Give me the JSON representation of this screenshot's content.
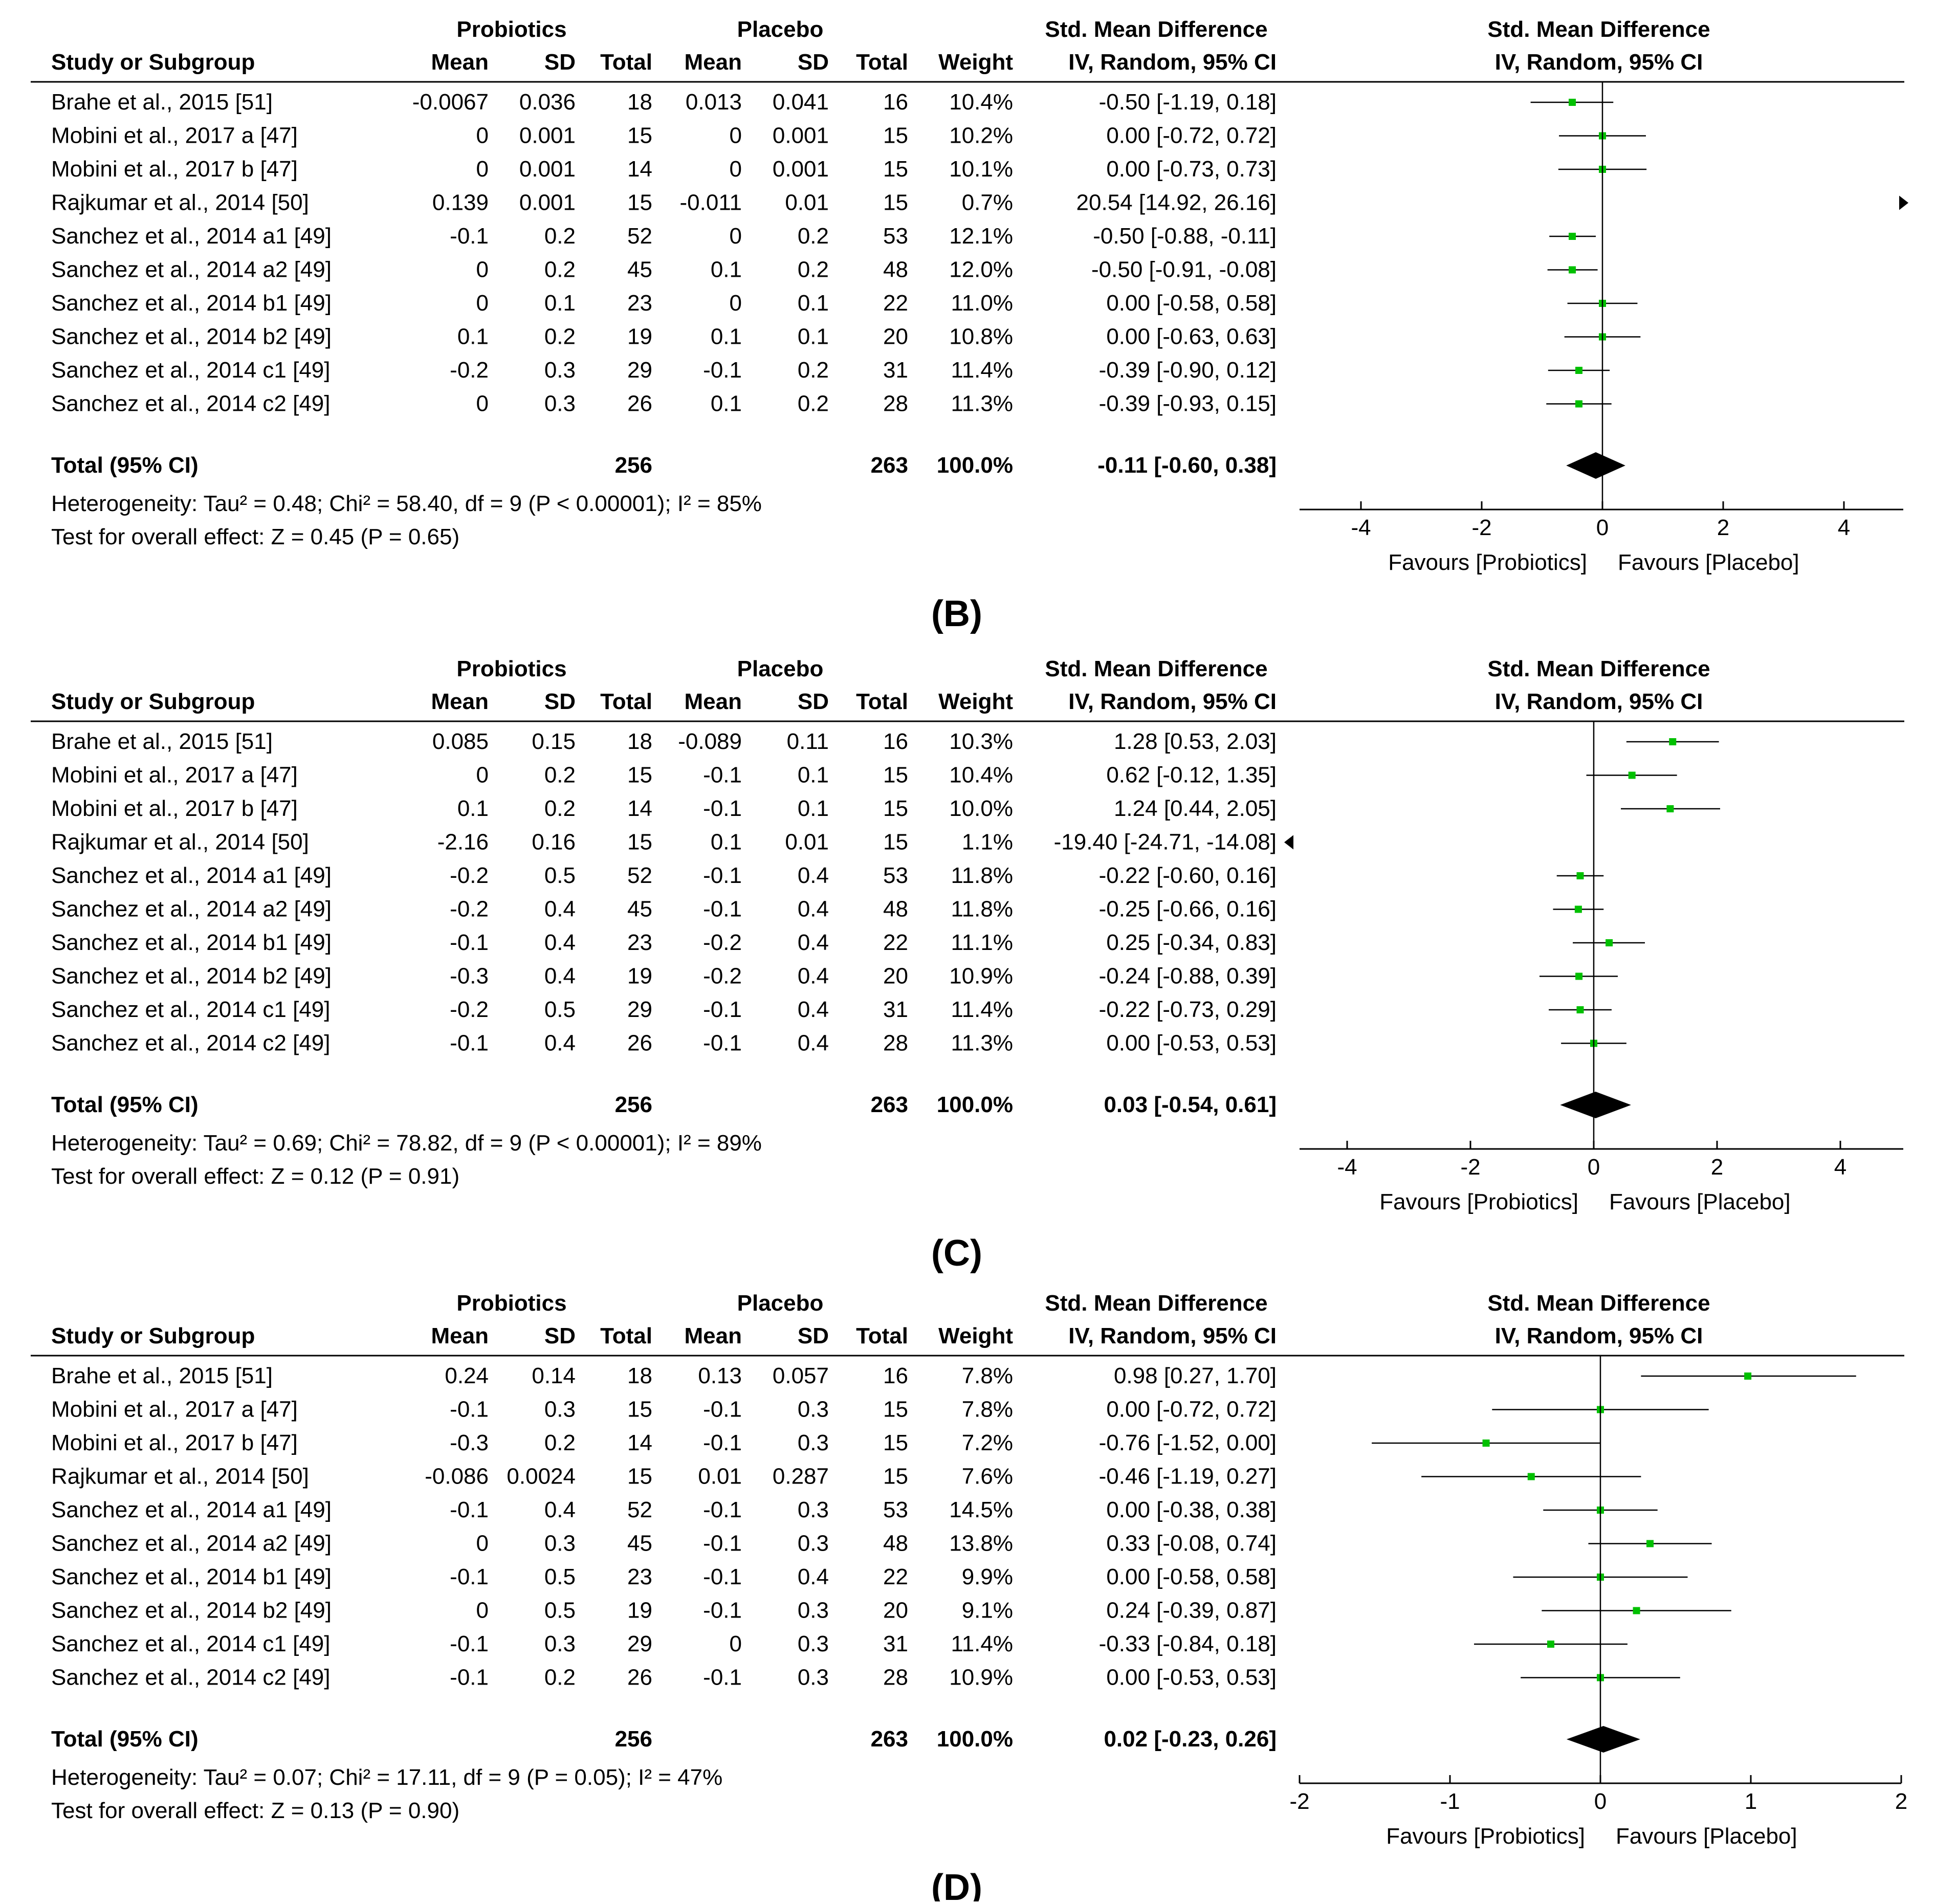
{
  "colors": {
    "point": "#00c000",
    "line": "#000000",
    "background": "#ffffff"
  },
  "header": {
    "group1": "Probiotics",
    "group2": "Placebo",
    "effect_title": "Std. Mean Difference",
    "effect_method": "IV, Random, 95% CI",
    "study_col": "Study or Subgroup",
    "mean": "Mean",
    "sd": "SD",
    "total": "Total",
    "weight": "Weight"
  },
  "chart_data": [
    {
      "type": "forest",
      "panel_label": "(B)",
      "title": "Std. Mean Difference",
      "xlim": [
        -5,
        5
      ],
      "ticks": [
        "-4",
        "-2",
        "0",
        "2",
        "4"
      ],
      "tick_values": [
        -4,
        -2,
        0,
        2,
        4
      ],
      "xlabel_left": "Favours [Probiotics]",
      "xlabel_right": "Favours [Placebo]",
      "studies": [
        {
          "name": "Brahe et al., 2015 [51]",
          "m1": "-0.0067",
          "sd1": "0.036",
          "n1": "18",
          "m2": "0.013",
          "sd2": "0.041",
          "n2": "16",
          "weight": "10.4%",
          "ci_text": "-0.50 [-1.19, 0.18]",
          "est": -0.5,
          "lo": -1.19,
          "hi": 0.18
        },
        {
          "name": "Mobini et al., 2017 a [47]",
          "m1": "0",
          "sd1": "0.001",
          "n1": "15",
          "m2": "0",
          "sd2": "0.001",
          "n2": "15",
          "weight": "10.2%",
          "ci_text": "0.00 [-0.72, 0.72]",
          "est": 0.0,
          "lo": -0.72,
          "hi": 0.72
        },
        {
          "name": "Mobini et al., 2017 b [47]",
          "m1": "0",
          "sd1": "0.001",
          "n1": "14",
          "m2": "0",
          "sd2": "0.001",
          "n2": "15",
          "weight": "10.1%",
          "ci_text": "0.00 [-0.73, 0.73]",
          "est": 0.0,
          "lo": -0.73,
          "hi": 0.73
        },
        {
          "name": "Rajkumar et al., 2014 [50]",
          "m1": "0.139",
          "sd1": "0.001",
          "n1": "15",
          "m2": "-0.011",
          "sd2": "0.01",
          "n2": "15",
          "weight": "0.7%",
          "ci_text": "20.54 [14.92, 26.16]",
          "est": 20.54,
          "lo": 14.92,
          "hi": 26.16
        },
        {
          "name": "Sanchez et al., 2014 a1 [49]",
          "m1": "-0.1",
          "sd1": "0.2",
          "n1": "52",
          "m2": "0",
          "sd2": "0.2",
          "n2": "53",
          "weight": "12.1%",
          "ci_text": "-0.50 [-0.88, -0.11]",
          "est": -0.5,
          "lo": -0.88,
          "hi": -0.11
        },
        {
          "name": "Sanchez et al., 2014 a2 [49]",
          "m1": "0",
          "sd1": "0.2",
          "n1": "45",
          "m2": "0.1",
          "sd2": "0.2",
          "n2": "48",
          "weight": "12.0%",
          "ci_text": "-0.50 [-0.91, -0.08]",
          "est": -0.5,
          "lo": -0.91,
          "hi": -0.08
        },
        {
          "name": "Sanchez et al., 2014 b1 [49]",
          "m1": "0",
          "sd1": "0.1",
          "n1": "23",
          "m2": "0",
          "sd2": "0.1",
          "n2": "22",
          "weight": "11.0%",
          "ci_text": "0.00 [-0.58, 0.58]",
          "est": 0.0,
          "lo": -0.58,
          "hi": 0.58
        },
        {
          "name": "Sanchez et al., 2014 b2 [49]",
          "m1": "0.1",
          "sd1": "0.2",
          "n1": "19",
          "m2": "0.1",
          "sd2": "0.1",
          "n2": "20",
          "weight": "10.8%",
          "ci_text": "0.00 [-0.63, 0.63]",
          "est": 0.0,
          "lo": -0.63,
          "hi": 0.63
        },
        {
          "name": "Sanchez et al., 2014 c1 [49]",
          "m1": "-0.2",
          "sd1": "0.3",
          "n1": "29",
          "m2": "-0.1",
          "sd2": "0.2",
          "n2": "31",
          "weight": "11.4%",
          "ci_text": "-0.39 [-0.90, 0.12]",
          "est": -0.39,
          "lo": -0.9,
          "hi": 0.12
        },
        {
          "name": "Sanchez et al., 2014 c2 [49]",
          "m1": "0",
          "sd1": "0.3",
          "n1": "26",
          "m2": "0.1",
          "sd2": "0.2",
          "n2": "28",
          "weight": "11.3%",
          "ci_text": "-0.39 [-0.93, 0.15]",
          "est": -0.39,
          "lo": -0.93,
          "hi": 0.15
        }
      ],
      "total": {
        "label": "Total (95% CI)",
        "n1": "256",
        "n2": "263",
        "weight": "100.0%",
        "ci_text": "-0.11 [-0.60, 0.38]",
        "est": -0.11,
        "lo": -0.6,
        "hi": 0.38
      },
      "heterogeneity": "Heterogeneity: Tau² = 0.48; Chi² = 58.40, df = 9 (P < 0.00001); I² = 85%",
      "overall": "Test for overall effect: Z = 0.45 (P = 0.65)"
    },
    {
      "type": "forest",
      "panel_label": "(C)",
      "title": "Std. Mean Difference",
      "xlim": [
        -5,
        5
      ],
      "ticks": [
        "-4",
        "-2",
        "0",
        "2",
        "4"
      ],
      "tick_values": [
        -4,
        -2,
        0,
        2,
        4
      ],
      "xlabel_left": "Favours [Probiotics]",
      "xlabel_right": "Favours [Placebo]",
      "studies": [
        {
          "name": "Brahe et al., 2015 [51]",
          "m1": "0.085",
          "sd1": "0.15",
          "n1": "18",
          "m2": "-0.089",
          "sd2": "0.11",
          "n2": "16",
          "weight": "10.3%",
          "ci_text": "1.28 [0.53, 2.03]",
          "est": 1.28,
          "lo": 0.53,
          "hi": 2.03
        },
        {
          "name": "Mobini et al., 2017 a [47]",
          "m1": "0",
          "sd1": "0.2",
          "n1": "15",
          "m2": "-0.1",
          "sd2": "0.1",
          "n2": "15",
          "weight": "10.4%",
          "ci_text": "0.62 [-0.12, 1.35]",
          "est": 0.62,
          "lo": -0.12,
          "hi": 1.35
        },
        {
          "name": "Mobini et al., 2017 b [47]",
          "m1": "0.1",
          "sd1": "0.2",
          "n1": "14",
          "m2": "-0.1",
          "sd2": "0.1",
          "n2": "15",
          "weight": "10.0%",
          "ci_text": "1.24 [0.44, 2.05]",
          "est": 1.24,
          "lo": 0.44,
          "hi": 2.05
        },
        {
          "name": "Rajkumar et al., 2014 [50]",
          "m1": "-2.16",
          "sd1": "0.16",
          "n1": "15",
          "m2": "0.1",
          "sd2": "0.01",
          "n2": "15",
          "weight": "1.1%",
          "ci_text": "-19.40 [-24.71, -14.08]",
          "est": -19.4,
          "lo": -24.71,
          "hi": -14.08
        },
        {
          "name": "Sanchez et al., 2014 a1 [49]",
          "m1": "-0.2",
          "sd1": "0.5",
          "n1": "52",
          "m2": "-0.1",
          "sd2": "0.4",
          "n2": "53",
          "weight": "11.8%",
          "ci_text": "-0.22 [-0.60, 0.16]",
          "est": -0.22,
          "lo": -0.6,
          "hi": 0.16
        },
        {
          "name": "Sanchez et al., 2014 a2 [49]",
          "m1": "-0.2",
          "sd1": "0.4",
          "n1": "45",
          "m2": "-0.1",
          "sd2": "0.4",
          "n2": "48",
          "weight": "11.8%",
          "ci_text": "-0.25 [-0.66, 0.16]",
          "est": -0.25,
          "lo": -0.66,
          "hi": 0.16
        },
        {
          "name": "Sanchez et al., 2014 b1 [49]",
          "m1": "-0.1",
          "sd1": "0.4",
          "n1": "23",
          "m2": "-0.2",
          "sd2": "0.4",
          "n2": "22",
          "weight": "11.1%",
          "ci_text": "0.25 [-0.34, 0.83]",
          "est": 0.25,
          "lo": -0.34,
          "hi": 0.83
        },
        {
          "name": "Sanchez et al., 2014 b2 [49]",
          "m1": "-0.3",
          "sd1": "0.4",
          "n1": "19",
          "m2": "-0.2",
          "sd2": "0.4",
          "n2": "20",
          "weight": "10.9%",
          "ci_text": "-0.24 [-0.88, 0.39]",
          "est": -0.24,
          "lo": -0.88,
          "hi": 0.39
        },
        {
          "name": "Sanchez et al., 2014 c1 [49]",
          "m1": "-0.2",
          "sd1": "0.5",
          "n1": "29",
          "m2": "-0.1",
          "sd2": "0.4",
          "n2": "31",
          "weight": "11.4%",
          "ci_text": "-0.22 [-0.73, 0.29]",
          "est": -0.22,
          "lo": -0.73,
          "hi": 0.29
        },
        {
          "name": "Sanchez et al., 2014 c2 [49]",
          "m1": "-0.1",
          "sd1": "0.4",
          "n1": "26",
          "m2": "-0.1",
          "sd2": "0.4",
          "n2": "28",
          "weight": "11.3%",
          "ci_text": "0.00 [-0.53, 0.53]",
          "est": 0.0,
          "lo": -0.53,
          "hi": 0.53
        }
      ],
      "total": {
        "label": "Total (95% CI)",
        "n1": "256",
        "n2": "263",
        "weight": "100.0%",
        "ci_text": "0.03 [-0.54, 0.61]",
        "est": 0.03,
        "lo": -0.54,
        "hi": 0.61
      },
      "heterogeneity": "Heterogeneity: Tau² = 0.69; Chi² = 78.82, df = 9 (P < 0.00001); I² = 89%",
      "overall": "Test for overall effect: Z = 0.12 (P = 0.91)"
    },
    {
      "type": "forest",
      "panel_label": "(D)",
      "title": "Std. Mean Difference",
      "xlim": [
        -2,
        2
      ],
      "ticks": [
        "-2",
        "-1",
        "0",
        "1",
        "2"
      ],
      "tick_values": [
        -2,
        -1,
        0,
        1,
        2
      ],
      "xlabel_left": "Favours [Probiotics]",
      "xlabel_right": "Favours [Placebo]",
      "studies": [
        {
          "name": "Brahe et al., 2015 [51]",
          "m1": "0.24",
          "sd1": "0.14",
          "n1": "18",
          "m2": "0.13",
          "sd2": "0.057",
          "n2": "16",
          "weight": "7.8%",
          "ci_text": "0.98 [0.27, 1.70]",
          "est": 0.98,
          "lo": 0.27,
          "hi": 1.7
        },
        {
          "name": "Mobini et al., 2017 a [47]",
          "m1": "-0.1",
          "sd1": "0.3",
          "n1": "15",
          "m2": "-0.1",
          "sd2": "0.3",
          "n2": "15",
          "weight": "7.8%",
          "ci_text": "0.00 [-0.72, 0.72]",
          "est": 0.0,
          "lo": -0.72,
          "hi": 0.72
        },
        {
          "name": "Mobini et al., 2017 b [47]",
          "m1": "-0.3",
          "sd1": "0.2",
          "n1": "14",
          "m2": "-0.1",
          "sd2": "0.3",
          "n2": "15",
          "weight": "7.2%",
          "ci_text": "-0.76 [-1.52, 0.00]",
          "est": -0.76,
          "lo": -1.52,
          "hi": 0.0
        },
        {
          "name": "Rajkumar et al., 2014 [50]",
          "m1": "-0.086",
          "sd1": "0.0024",
          "n1": "15",
          "m2": "0.01",
          "sd2": "0.287",
          "n2": "15",
          "weight": "7.6%",
          "ci_text": "-0.46 [-1.19, 0.27]",
          "est": -0.46,
          "lo": -1.19,
          "hi": 0.27
        },
        {
          "name": "Sanchez et al., 2014 a1 [49]",
          "m1": "-0.1",
          "sd1": "0.4",
          "n1": "52",
          "m2": "-0.1",
          "sd2": "0.3",
          "n2": "53",
          "weight": "14.5%",
          "ci_text": "0.00 [-0.38, 0.38]",
          "est": 0.0,
          "lo": -0.38,
          "hi": 0.38
        },
        {
          "name": "Sanchez et al., 2014 a2 [49]",
          "m1": "0",
          "sd1": "0.3",
          "n1": "45",
          "m2": "-0.1",
          "sd2": "0.3",
          "n2": "48",
          "weight": "13.8%",
          "ci_text": "0.33 [-0.08, 0.74]",
          "est": 0.33,
          "lo": -0.08,
          "hi": 0.74
        },
        {
          "name": "Sanchez et al., 2014 b1 [49]",
          "m1": "-0.1",
          "sd1": "0.5",
          "n1": "23",
          "m2": "-0.1",
          "sd2": "0.4",
          "n2": "22",
          "weight": "9.9%",
          "ci_text": "0.00 [-0.58, 0.58]",
          "est": 0.0,
          "lo": -0.58,
          "hi": 0.58
        },
        {
          "name": "Sanchez et al., 2014 b2 [49]",
          "m1": "0",
          "sd1": "0.5",
          "n1": "19",
          "m2": "-0.1",
          "sd2": "0.3",
          "n2": "20",
          "weight": "9.1%",
          "ci_text": "0.24 [-0.39, 0.87]",
          "est": 0.24,
          "lo": -0.39,
          "hi": 0.87
        },
        {
          "name": "Sanchez et al., 2014 c1 [49]",
          "m1": "-0.1",
          "sd1": "0.3",
          "n1": "29",
          "m2": "0",
          "sd2": "0.3",
          "n2": "31",
          "weight": "11.4%",
          "ci_text": "-0.33 [-0.84, 0.18]",
          "est": -0.33,
          "lo": -0.84,
          "hi": 0.18
        },
        {
          "name": "Sanchez et al., 2014 c2 [49]",
          "m1": "-0.1",
          "sd1": "0.2",
          "n1": "26",
          "m2": "-0.1",
          "sd2": "0.3",
          "n2": "28",
          "weight": "10.9%",
          "ci_text": "0.00 [-0.53, 0.53]",
          "est": 0.0,
          "lo": -0.53,
          "hi": 0.53
        }
      ],
      "total": {
        "label": "Total (95% CI)",
        "n1": "256",
        "n2": "263",
        "weight": "100.0%",
        "ci_text": "0.02 [-0.23, 0.26]",
        "est": 0.02,
        "lo": -0.23,
        "hi": 0.26
      },
      "heterogeneity": "Heterogeneity: Tau² = 0.07; Chi² = 17.11, df = 9 (P = 0.05); I² = 47%",
      "overall": "Test for overall effect: Z = 0.13 (P = 0.90)"
    }
  ]
}
